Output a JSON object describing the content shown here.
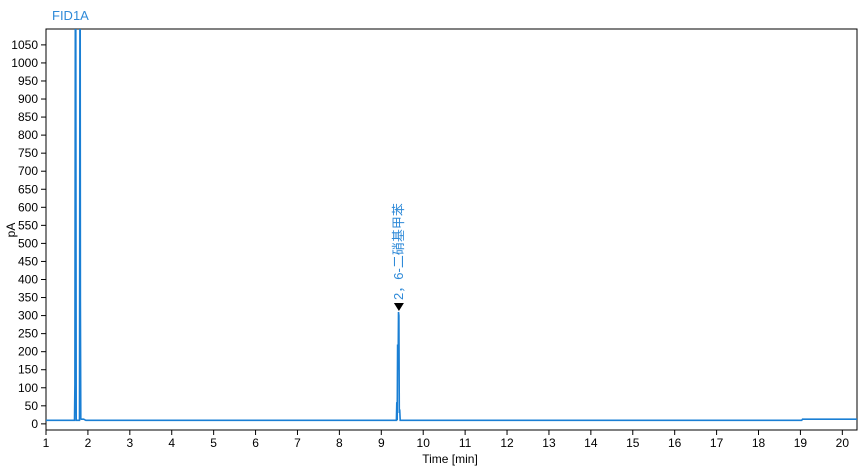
{
  "chart_data": {
    "type": "line",
    "title": "FID1A",
    "xlabel": "Time [min]",
    "ylabel": "pA",
    "xlim": [
      1,
      20.35
    ],
    "ylim": [
      -17,
      1094
    ],
    "x_ticks": [
      1,
      2,
      3,
      4,
      5,
      6,
      7,
      8,
      9,
      10,
      11,
      12,
      13,
      14,
      15,
      16,
      17,
      18,
      19,
      20
    ],
    "y_ticks": [
      0,
      50,
      100,
      150,
      200,
      250,
      300,
      350,
      400,
      450,
      500,
      550,
      600,
      650,
      700,
      750,
      800,
      850,
      900,
      950,
      1000,
      1050
    ],
    "grid": false,
    "series_color": "#1a7fd4",
    "series": [
      {
        "x": [
          1,
          1.68,
          1.69,
          1.7,
          1.71,
          1.72,
          1.8,
          1.81,
          1.815,
          1.82,
          1.83,
          1.84,
          1.9,
          1.95,
          1.96,
          9.36,
          9.37,
          9.38,
          9.39,
          9.4,
          9.41,
          9.42,
          9.43,
          9.44,
          9.45,
          9.46,
          9.47,
          19.03,
          19.05,
          20.35
        ],
        "y": [
          10,
          10,
          110,
          1100,
          1100,
          10,
          10,
          1100,
          1100,
          340,
          14,
          13,
          13,
          10,
          10,
          10,
          60,
          10,
          220,
          150,
          310,
          300,
          30,
          40,
          10,
          10,
          10,
          10,
          13,
          13
        ]
      }
    ],
    "annotations": [
      {
        "x": 9.42,
        "y": 310,
        "label": "2，6-二硝基甲苯",
        "marker": "triangle-down"
      }
    ]
  }
}
